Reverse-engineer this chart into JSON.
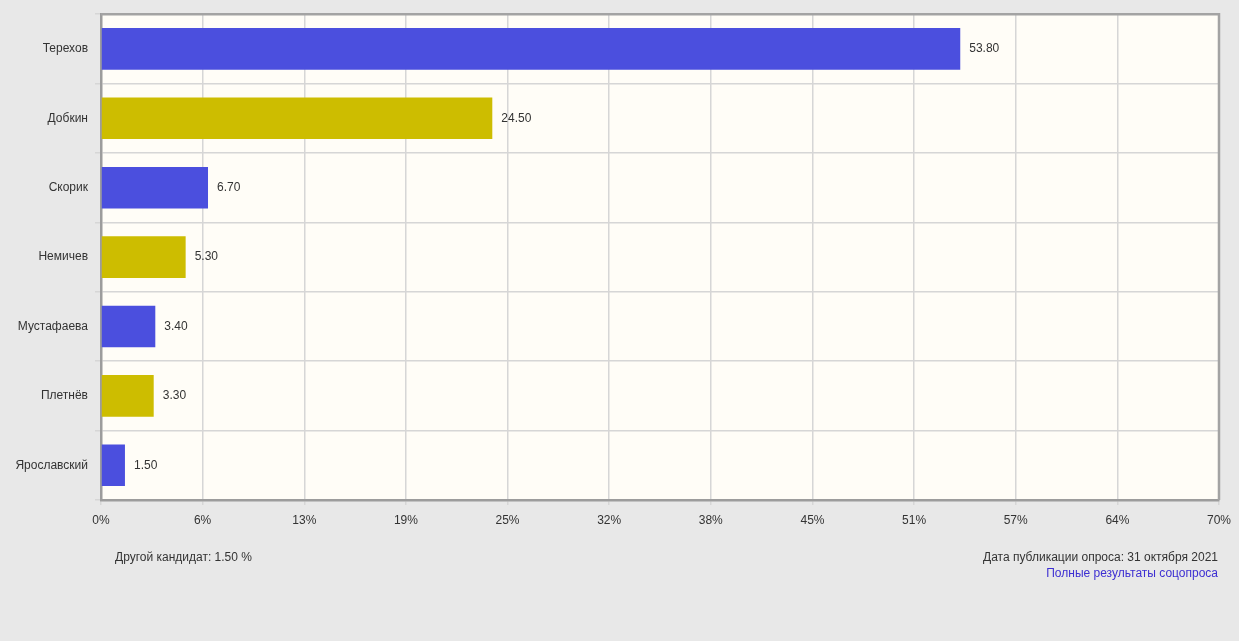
{
  "chart_data": {
    "type": "bar",
    "orientation": "horizontal",
    "categories": [
      "Терехов",
      "Добкин",
      "Скорик",
      "Немичев",
      "Мустафаева",
      "Плетнёв",
      "Ярославский"
    ],
    "values": [
      53.8,
      24.5,
      6.7,
      5.3,
      3.4,
      3.3,
      1.5
    ],
    "colors": [
      "#4b4fde",
      "#cdbd00",
      "#4b4fde",
      "#cdbd00",
      "#4b4fde",
      "#cdbd00",
      "#4b4fde"
    ],
    "value_labels": [
      "53.80",
      "24.50",
      "6.70",
      "5.30",
      "3.40",
      "3.30",
      "1.50"
    ],
    "xlim": [
      0,
      70
    ],
    "xticks": [
      {
        "value": 0,
        "label": "0%"
      },
      {
        "value": 6.36,
        "label": "6%"
      },
      {
        "value": 12.73,
        "label": "13%"
      },
      {
        "value": 19.09,
        "label": "19%"
      },
      {
        "value": 25.45,
        "label": "25%"
      },
      {
        "value": 31.82,
        "label": "32%"
      },
      {
        "value": 38.18,
        "label": "38%"
      },
      {
        "value": 44.55,
        "label": "45%"
      },
      {
        "value": 50.91,
        "label": "51%"
      },
      {
        "value": 57.27,
        "label": "57%"
      },
      {
        "value": 63.64,
        "label": "64%"
      },
      {
        "value": 70,
        "label": "70%"
      }
    ],
    "grid": true,
    "annotations": [
      "Другой кандидат: 1.50 %",
      "Дата публикации опроса: 31 октября 2021",
      "Полные результаты соцопроса"
    ]
  }
}
